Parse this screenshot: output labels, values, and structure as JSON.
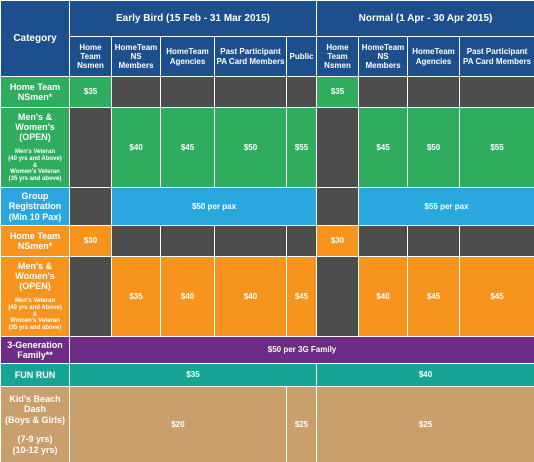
{
  "header": {
    "category": "Category",
    "early_bird": "Early Bird (15 Feb - 31 Mar 2015)",
    "normal": "Normal (1 Apr - 30 Apr 2015)",
    "early_bird_columns": [
      "Home Team Nsmen",
      "HomeTeam NS Members",
      "HomeTeam Agencies",
      "Past Participant PA Card Members",
      "Public"
    ],
    "normal_columns": [
      "Home Team Nsmen",
      "HomeTeam NS Members",
      "HomeTeam Agencies",
      "Past Participant PA Card Members"
    ]
  },
  "rows": [
    {
      "category": "Home Team NSmen*",
      "prices": [
        "$35",
        "$35"
      ]
    },
    {
      "category": "Men's & Women's (OPEN)",
      "note": [
        "Men's Veteran",
        "(40 yrs and Above)",
        "&",
        "Women's Veteran",
        "(35 yrs and above)"
      ],
      "prices": [
        "$40",
        "$45",
        "$50",
        "$55",
        "$45",
        "$50",
        "$55"
      ]
    },
    {
      "category": "Group Registration (Min 10 Pax)",
      "prices": [
        "$50 per pax",
        "$55 per pax"
      ]
    },
    {
      "category": "Home Team NSmen*",
      "prices": [
        "$30",
        "$30"
      ]
    },
    {
      "category": "Men's & Women's (OPEN)",
      "note": [
        "Men's Veteran",
        "(40 yrs and Above)",
        "&",
        "Women's Veteran",
        "(35 yrs and above)"
      ],
      "prices": [
        "$35",
        "$40",
        "$40",
        "$45",
        "$40",
        "$45",
        "$45"
      ]
    },
    {
      "category": "3-Generation Family**",
      "prices": [
        "$50 per 3G Family"
      ]
    },
    {
      "category": "FUN RUN",
      "prices": [
        "$35",
        "$40"
      ]
    },
    {
      "category": [
        "Kid's Beach Dash",
        "(Boys & Girls)",
        "(7-9 yrs)",
        "(10-12 yrs)"
      ],
      "prices": [
        "$20",
        "$25",
        "$25"
      ]
    }
  ]
}
